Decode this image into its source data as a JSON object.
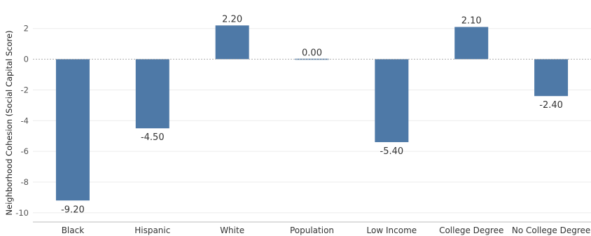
{
  "chart_data": {
    "type": "bar",
    "ylabel": "Neighborhood Cohesion (Social Capital Score)",
    "xlabel": "",
    "ylim": [
      -10.6,
      3.4
    ],
    "yticks": [
      2,
      0,
      -2,
      -4,
      -6,
      -8,
      -10
    ],
    "grid": true,
    "bar_color": "#4e79a7",
    "categories": [
      "Black",
      "Hispanic",
      "White",
      "Population",
      "Low Income",
      "College Degree",
      "No College Degree"
    ],
    "values": [
      -9.2,
      -4.5,
      2.2,
      0.0,
      -5.4,
      2.1,
      -2.4
    ],
    "data_labels": [
      "-9.20",
      "-4.50",
      "2.20",
      "0.00",
      "-5.40",
      "2.10",
      "-2.40"
    ]
  }
}
